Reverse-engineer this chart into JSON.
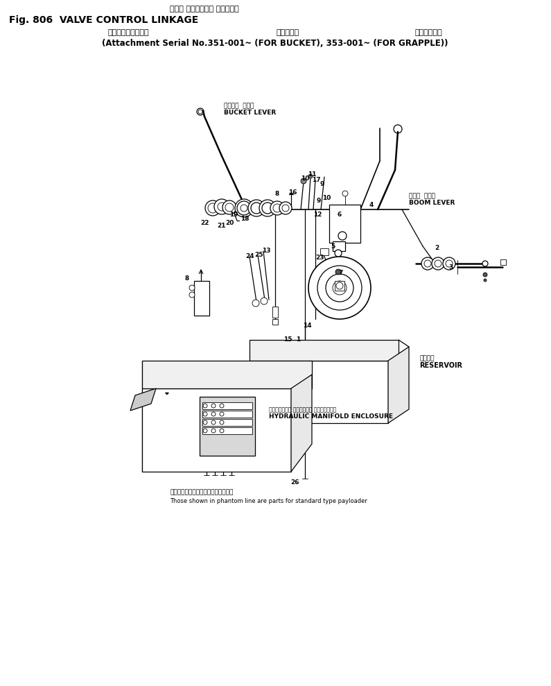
{
  "title_japanese": "バルブ コントロール リンケージ",
  "title_english": "Fig. 806  VALVE CONTROL LINKAGE",
  "subtitle_japanese": "アタッチメント号機",
  "subtitle_japanese2": "バケット用",
  "subtitle_japanese3": "グラップル用",
  "subtitle_english": "(Attachment Serial No.351-001~ (FOR BUCKET), 353-001~ (FOR GRAPPLE))",
  "note_japanese": "仮想線で示されている部品は標準車用",
  "note_english": "Those shown in phantom line are parts for standard type payloader",
  "bg_color": "#ffffff",
  "text_color": "#000000",
  "fig_width": 7.95,
  "fig_height": 9.89,
  "dpi": 100
}
